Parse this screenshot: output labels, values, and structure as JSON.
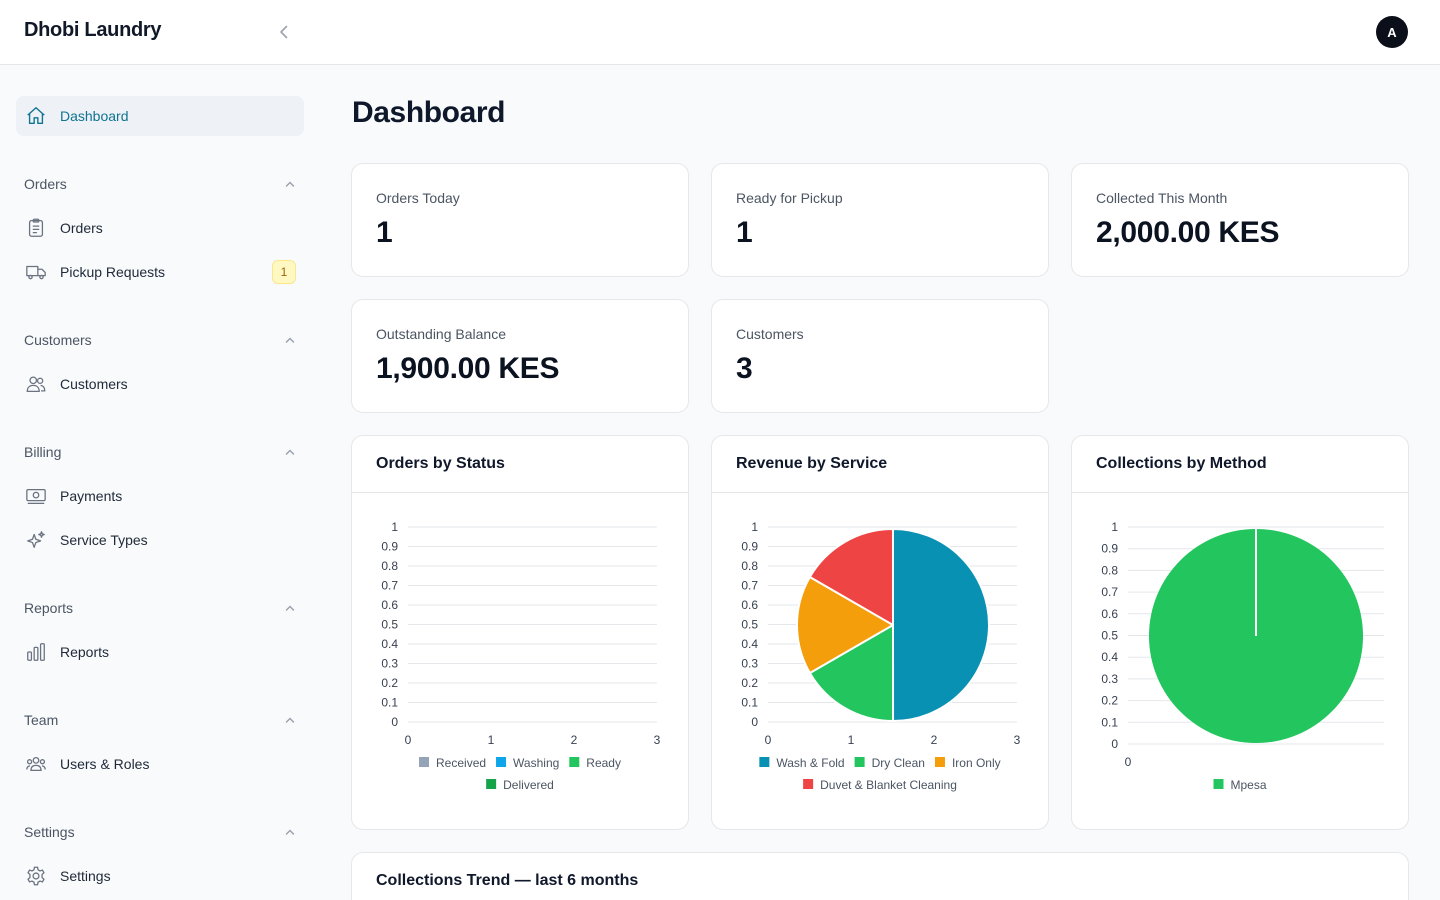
{
  "app": {
    "brand": "Dhobi Laundry",
    "avatar_initial": "A"
  },
  "sidebar": {
    "dashboard_label": "Dashboard",
    "sections": {
      "orders": "Orders",
      "customers": "Customers",
      "billing": "Billing",
      "reports": "Reports",
      "team": "Team",
      "settings": "Settings"
    },
    "items": {
      "orders": "Orders",
      "pickup_requests": "Pickup Requests",
      "pickup_badge": "1",
      "customers": "Customers",
      "payments": "Payments",
      "service_types": "Service Types",
      "reports": "Reports",
      "users_roles": "Users & Roles",
      "settings": "Settings"
    }
  },
  "page": {
    "title": "Dashboard"
  },
  "stats": {
    "orders_today": {
      "label": "Orders Today",
      "value": "1"
    },
    "ready_for_pickup": {
      "label": "Ready for Pickup",
      "value": "1"
    },
    "collected_this_month": {
      "label": "Collected This Month",
      "value": "2,000.00 KES"
    },
    "outstanding_balance": {
      "label": "Outstanding Balance",
      "value": "1,900.00 KES"
    },
    "customers": {
      "label": "Customers",
      "value": "3"
    }
  },
  "colors": {
    "accent": "#0e7490",
    "gray": "#94a3b8",
    "blue": "#0ea5e9",
    "green": "#22c55e",
    "dark_green": "#16a34a",
    "teal": "#0891b2",
    "orange": "#f59e0b",
    "red": "#ef4444"
  },
  "chart_data": [
    {
      "type": "bar",
      "title": "Orders by Status",
      "ylim": [
        0,
        1
      ],
      "y_ticks": [
        "0",
        "0.1",
        "0.2",
        "0.3",
        "0.4",
        "0.5",
        "0.6",
        "0.7",
        "0.8",
        "0.9",
        "1"
      ],
      "x_ticks": [
        "0",
        "1",
        "2",
        "3"
      ],
      "legend_placement": "bottom",
      "series": [
        {
          "name": "Received",
          "color": "#94a3b8",
          "values": []
        },
        {
          "name": "Washing",
          "color": "#0ea5e9",
          "values": []
        },
        {
          "name": "Ready",
          "color": "#22c55e",
          "values": []
        },
        {
          "name": "Delivered",
          "color": "#16a34a",
          "values": []
        }
      ]
    },
    {
      "type": "pie",
      "title": "Revenue by Service",
      "y_ticks": [
        "0",
        "0.1",
        "0.2",
        "0.3",
        "0.4",
        "0.5",
        "0.6",
        "0.7",
        "0.8",
        "0.9",
        "1"
      ],
      "x_ticks": [
        "0",
        "1",
        "2",
        "3"
      ],
      "legend_placement": "bottom",
      "slices": [
        {
          "name": "Wash & Fold",
          "color": "#0891b2",
          "value": 0.5
        },
        {
          "name": "Dry Clean",
          "color": "#22c55e",
          "value": 0.1667
        },
        {
          "name": "Iron Only",
          "color": "#f59e0b",
          "value": 0.1667
        },
        {
          "name": "Duvet & Blanket Cleaning",
          "color": "#ef4444",
          "value": 0.1667
        }
      ]
    },
    {
      "type": "pie",
      "title": "Collections by Method",
      "y_ticks": [
        "0",
        "0.1",
        "0.2",
        "0.3",
        "0.4",
        "0.5",
        "0.6",
        "0.7",
        "0.8",
        "0.9",
        "1"
      ],
      "x_ticks": [
        "0"
      ],
      "legend_placement": "bottom",
      "slices": [
        {
          "name": "Mpesa",
          "color": "#22c55e",
          "value": 1
        }
      ]
    }
  ],
  "trend": {
    "title": "Collections Trend — last 6 months"
  }
}
